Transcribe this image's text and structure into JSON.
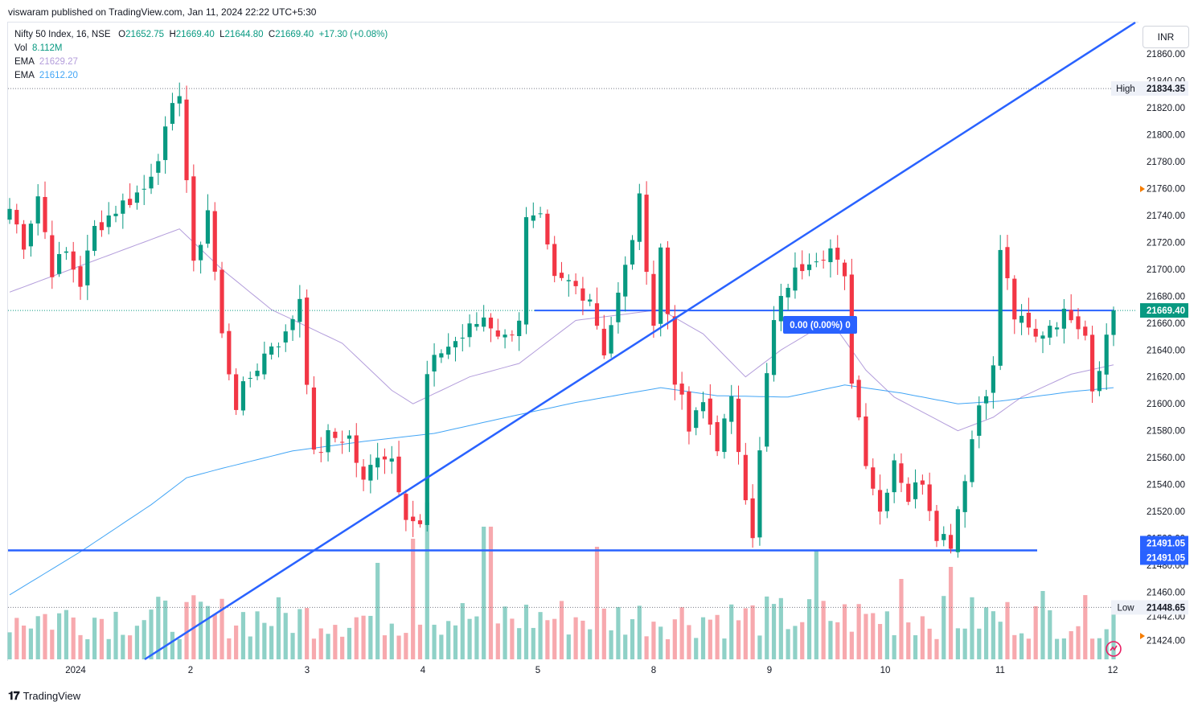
{
  "header": {
    "published_by": "viswaram published on TradingView.com, Jan 11, 2024 22:22 UTC+5:30"
  },
  "legend": {
    "symbol": "Nifty 50 Index, 16, NSE",
    "open_label": "O",
    "open": "21652.75",
    "high_label": "H",
    "high": "21669.40",
    "low_label": "L",
    "low": "21644.80",
    "close_label": "C",
    "close": "21669.40",
    "change": "+17.30 (+0.08%)",
    "vol_label": "Vol",
    "vol": "8.112M",
    "ema1_label": "EMA",
    "ema1": "21629.27",
    "ema2_label": "EMA",
    "ema2": "21612.20"
  },
  "currency": "INR",
  "footer": {
    "brand": "TradingView"
  },
  "annotation_box": "0.00 (0.00%) 0",
  "colors": {
    "up": "#089981",
    "down": "#f23645",
    "up_vol": "#8fd1c7",
    "down_vol": "#f7a9ae",
    "trendline": "#2962ff",
    "ema1": "#b39ddb",
    "ema2": "#42a5f5",
    "label_bg": "#2962ff"
  },
  "chart_data": {
    "type": "candlestick",
    "symbol": "Nifty 50 Index",
    "interval": "16",
    "exchange": "NSE",
    "x_ticks": [
      "2024",
      "2",
      "3",
      "4",
      "5",
      "8",
      "9",
      "10",
      "11",
      "12"
    ],
    "ylim": [
      21413,
      21875
    ],
    "y_ticks": [
      "21424.00",
      "21442.00",
      "21460.00",
      "21480.00",
      "21500.00",
      "21520.00",
      "21540.00",
      "21560.00",
      "21580.00",
      "21600.00",
      "21620.00",
      "21640.00",
      "21660.00",
      "21680.00",
      "21700.00",
      "21720.00",
      "21740.00",
      "21760.00",
      "21780.00",
      "21800.00",
      "21820.00",
      "21840.00",
      "21860.00"
    ],
    "price_labels": {
      "high_text": "High",
      "high_value": "21834.35",
      "last_value": "21669.40",
      "support_value_1": "21491.05",
      "support_value_2": "21491.05",
      "low_text": "Low",
      "low_value": "21448.65"
    },
    "horizontal_lines": [
      21669.4,
      21491.05
    ],
    "trendline": {
      "from": [
        0.0,
        21413
      ],
      "to": [
        1.0,
        21873
      ]
    },
    "anchors": [
      {
        "x": 0,
        "price": 21745
      },
      {
        "x": 2,
        "price": 21720
      },
      {
        "x": 4,
        "price": 21755
      },
      {
        "x": 6,
        "price": 21700
      },
      {
        "x": 8,
        "price": 21712
      },
      {
        "x": 10,
        "price": 21690
      },
      {
        "x": 12,
        "price": 21730
      },
      {
        "x": 15,
        "price": 21745
      },
      {
        "x": 19,
        "price": 21760
      },
      {
        "x": 22,
        "price": 21800
      },
      {
        "x": 24,
        "price": 21834
      },
      {
        "x": 26,
        "price": 21700
      },
      {
        "x": 28,
        "price": 21745
      },
      {
        "x": 30,
        "price": 21650
      },
      {
        "x": 32,
        "price": 21600
      },
      {
        "x": 34,
        "price": 21620
      },
      {
        "x": 37,
        "price": 21645
      },
      {
        "x": 39,
        "price": 21650
      },
      {
        "x": 41,
        "price": 21680
      },
      {
        "x": 43,
        "price": 21560
      },
      {
        "x": 45,
        "price": 21575
      },
      {
        "x": 48,
        "price": 21575
      },
      {
        "x": 50,
        "price": 21540
      },
      {
        "x": 52,
        "price": 21565
      },
      {
        "x": 54,
        "price": 21560
      },
      {
        "x": 56,
        "price": 21520
      },
      {
        "x": 58,
        "price": 21508
      },
      {
        "x": 59,
        "price": 21620
      },
      {
        "x": 61,
        "price": 21640
      },
      {
        "x": 64,
        "price": 21650
      },
      {
        "x": 67,
        "price": 21665
      },
      {
        "x": 70,
        "price": 21648
      },
      {
        "x": 72,
        "price": 21665
      },
      {
        "x": 73,
        "price": 21735
      },
      {
        "x": 75,
        "price": 21735
      },
      {
        "x": 77,
        "price": 21690
      },
      {
        "x": 79,
        "price": 21690
      },
      {
        "x": 82,
        "price": 21680
      },
      {
        "x": 84,
        "price": 21640
      },
      {
        "x": 87,
        "price": 21700
      },
      {
        "x": 89,
        "price": 21750
      },
      {
        "x": 91,
        "price": 21660
      },
      {
        "x": 92,
        "price": 21715
      },
      {
        "x": 94,
        "price": 21620
      },
      {
        "x": 96,
        "price": 21580
      },
      {
        "x": 98,
        "price": 21600
      },
      {
        "x": 100,
        "price": 21570
      },
      {
        "x": 102,
        "price": 21600
      },
      {
        "x": 104,
        "price": 21535
      },
      {
        "x": 105,
        "price": 21505
      },
      {
        "x": 107,
        "price": 21620
      },
      {
        "x": 108,
        "price": 21660
      },
      {
        "x": 110,
        "price": 21690
      },
      {
        "x": 113,
        "price": 21710
      },
      {
        "x": 116,
        "price": 21715
      },
      {
        "x": 118,
        "price": 21690
      },
      {
        "x": 119,
        "price": 21620
      },
      {
        "x": 121,
        "price": 21560
      },
      {
        "x": 123,
        "price": 21520
      },
      {
        "x": 125,
        "price": 21560
      },
      {
        "x": 127,
        "price": 21530
      },
      {
        "x": 129,
        "price": 21545
      },
      {
        "x": 131,
        "price": 21505
      },
      {
        "x": 133,
        "price": 21498
      },
      {
        "x": 135,
        "price": 21548
      },
      {
        "x": 137,
        "price": 21600
      },
      {
        "x": 139,
        "price": 21625
      },
      {
        "x": 140,
        "price": 21715
      },
      {
        "x": 142,
        "price": 21665
      },
      {
        "x": 145,
        "price": 21648
      },
      {
        "x": 147,
        "price": 21660
      },
      {
        "x": 150,
        "price": 21668
      },
      {
        "x": 152,
        "price": 21655
      },
      {
        "x": 153,
        "price": 21612
      },
      {
        "x": 155,
        "price": 21650
      },
      {
        "x": 156,
        "price": 21669
      }
    ],
    "ema_fast": [
      {
        "x": 0,
        "price": 21683
      },
      {
        "x": 24,
        "price": 21730
      },
      {
        "x": 30,
        "price": 21700
      },
      {
        "x": 37,
        "price": 21670
      },
      {
        "x": 47,
        "price": 21645
      },
      {
        "x": 54,
        "price": 21610
      },
      {
        "x": 57,
        "price": 21600
      },
      {
        "x": 65,
        "price": 21620
      },
      {
        "x": 72,
        "price": 21630
      },
      {
        "x": 80,
        "price": 21662
      },
      {
        "x": 92,
        "price": 21670
      },
      {
        "x": 98,
        "price": 21652
      },
      {
        "x": 104,
        "price": 21620
      },
      {
        "x": 109,
        "price": 21640
      },
      {
        "x": 116,
        "price": 21662
      },
      {
        "x": 121,
        "price": 21625
      },
      {
        "x": 125,
        "price": 21605
      },
      {
        "x": 134,
        "price": 21580
      },
      {
        "x": 139,
        "price": 21590
      },
      {
        "x": 143,
        "price": 21605
      },
      {
        "x": 150,
        "price": 21622
      },
      {
        "x": 156,
        "price": 21629
      }
    ],
    "ema_slow": [
      {
        "x": 0,
        "price": 21458
      },
      {
        "x": 10,
        "price": 21490
      },
      {
        "x": 20,
        "price": 21525
      },
      {
        "x": 25,
        "price": 21545
      },
      {
        "x": 30,
        "price": 21552
      },
      {
        "x": 40,
        "price": 21565
      },
      {
        "x": 50,
        "price": 21572
      },
      {
        "x": 60,
        "price": 21578
      },
      {
        "x": 72,
        "price": 21592
      },
      {
        "x": 80,
        "price": 21601
      },
      {
        "x": 92,
        "price": 21612
      },
      {
        "x": 100,
        "price": 21606
      },
      {
        "x": 110,
        "price": 21605
      },
      {
        "x": 118,
        "price": 21614
      },
      {
        "x": 126,
        "price": 21608
      },
      {
        "x": 134,
        "price": 21600
      },
      {
        "x": 140,
        "price": 21602
      },
      {
        "x": 150,
        "price": 21609
      },
      {
        "x": 156,
        "price": 21612
      }
    ],
    "n_bars": 157,
    "volume_note": "Volume histogram overlaid at bottom"
  }
}
